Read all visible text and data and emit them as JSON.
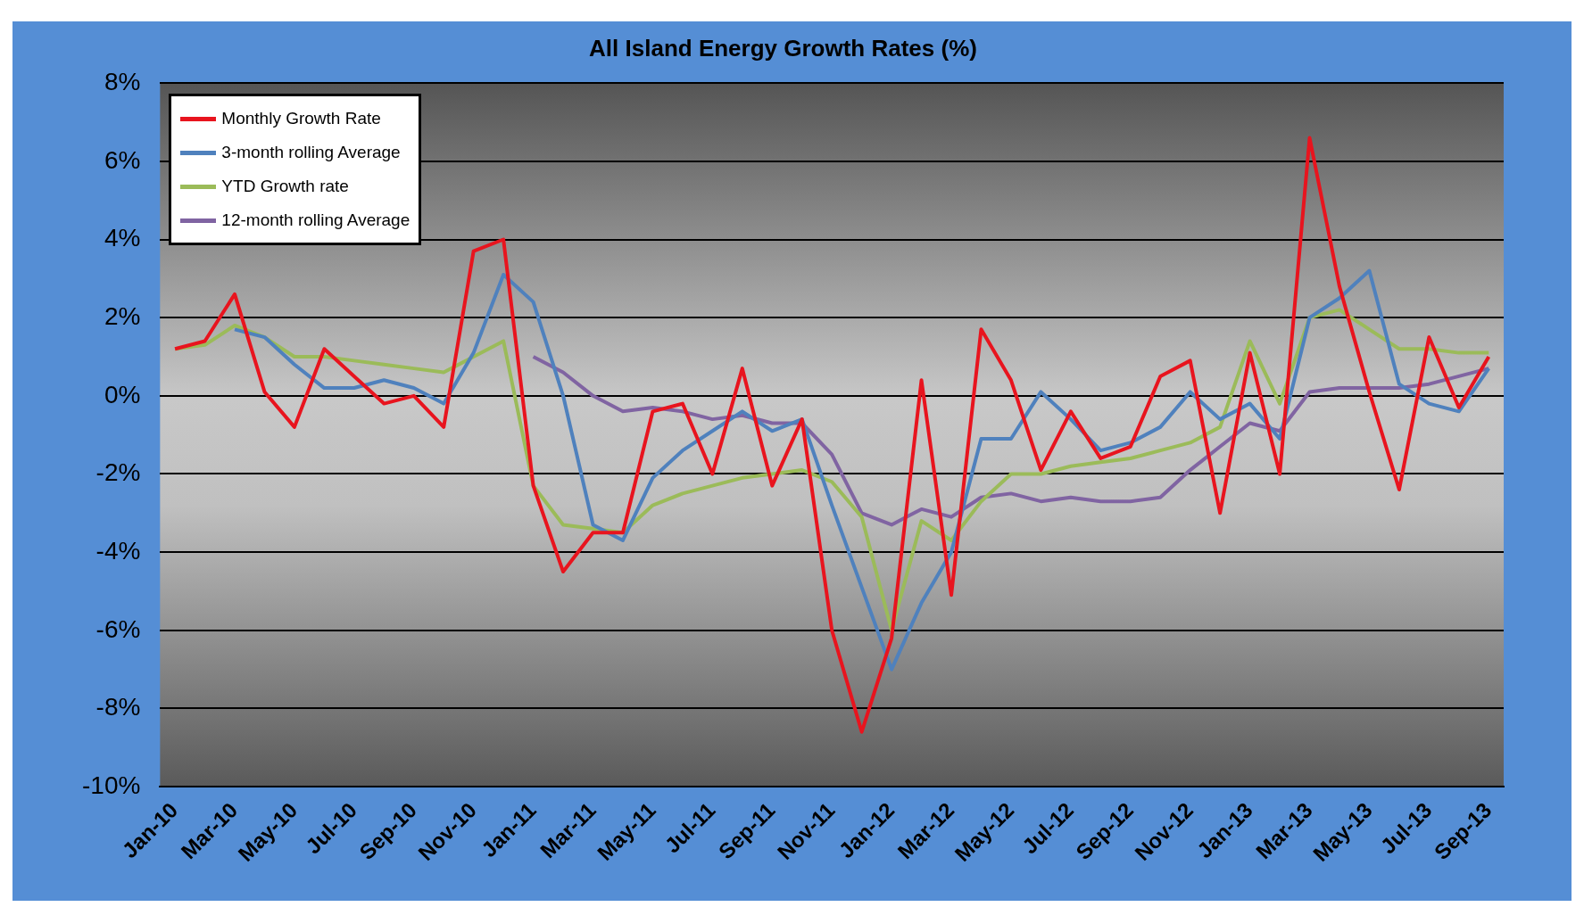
{
  "chart_data": {
    "type": "line",
    "title": "All Island Energy Growth Rates (%)",
    "categories": [
      "Jan-10",
      null,
      "Mar-10",
      null,
      "May-10",
      null,
      "Jul-10",
      null,
      "Sep-10",
      null,
      "Nov-10",
      null,
      "Jan-11",
      null,
      "Mar-11",
      null,
      "May-11",
      null,
      "Jul-11",
      null,
      "Sep-11",
      null,
      "Nov-11",
      null,
      "Jan-12",
      null,
      "Mar-12",
      null,
      "May-12",
      null,
      "Jul-12",
      null,
      "Sep-12",
      null,
      "Nov-12",
      null,
      "Jan-13",
      null,
      "Mar-13",
      null,
      "May-13",
      null,
      "Jul-13",
      null,
      "Sep-13"
    ],
    "series": [
      {
        "name": "Monthly Growth Rate",
        "color": "#e8141e",
        "values": [
          1.2,
          1.4,
          2.6,
          0.1,
          -0.8,
          1.2,
          0.5,
          -0.2,
          0.0,
          -0.8,
          3.7,
          4.0,
          -2.3,
          -4.5,
          -3.5,
          -3.5,
          -0.4,
          -0.2,
          -2.0,
          0.7,
          -2.3,
          -0.6,
          -6.0,
          -8.6,
          -6.2,
          0.4,
          -5.1,
          1.7,
          0.4,
          -1.9,
          -0.4,
          -1.6,
          -1.3,
          0.5,
          0.9,
          -3.0,
          1.1,
          -2.0,
          6.6,
          2.8,
          0.1,
          -2.4,
          1.5,
          -0.3,
          1.0
        ]
      },
      {
        "name": "3-month rolling Average",
        "color": "#4f81bd",
        "values": [
          null,
          null,
          1.7,
          1.5,
          0.8,
          0.2,
          0.2,
          0.4,
          0.2,
          -0.2,
          1.1,
          3.1,
          2.4,
          0.0,
          -3.3,
          -3.7,
          -2.1,
          -1.4,
          -0.9,
          -0.4,
          -0.9,
          -0.6,
          -2.8,
          -4.9,
          -7.0,
          -5.3,
          -4.0,
          -1.1,
          -1.1,
          0.1,
          -0.6,
          -1.4,
          -1.2,
          -0.8,
          0.1,
          -0.6,
          -0.2,
          -1.1,
          2.0,
          2.5,
          3.2,
          0.3,
          -0.2,
          -0.4,
          0.7
        ]
      },
      {
        "name": "YTD Growth rate",
        "color": "#9bbb59",
        "values": [
          1.2,
          1.3,
          1.8,
          1.5,
          1.0,
          1.0,
          0.9,
          0.8,
          0.7,
          0.6,
          1.0,
          1.4,
          -2.3,
          -3.3,
          -3.4,
          -3.5,
          -2.8,
          -2.5,
          -2.3,
          -2.1,
          -2.0,
          -1.9,
          -2.2,
          -3.1,
          -6.0,
          -3.2,
          -3.7,
          -2.7,
          -2.0,
          -2.0,
          -1.8,
          -1.7,
          -1.6,
          -1.4,
          -1.2,
          -0.8,
          1.4,
          -0.2,
          2.0,
          2.2,
          1.7,
          1.2,
          1.2,
          1.1,
          1.1
        ]
      },
      {
        "name": "12-month rolling Average",
        "color": "#8064a2",
        "values": [
          null,
          null,
          null,
          null,
          null,
          null,
          null,
          null,
          null,
          null,
          null,
          null,
          1.0,
          0.6,
          0.0,
          -0.4,
          -0.3,
          -0.4,
          -0.6,
          -0.5,
          -0.7,
          -0.7,
          -1.5,
          -3.0,
          -3.3,
          -2.9,
          -3.1,
          -2.6,
          -2.5,
          -2.7,
          -2.6,
          -2.7,
          -2.7,
          -2.6,
          -1.9,
          -1.3,
          -0.7,
          -0.9,
          0.1,
          0.2,
          0.2,
          0.2,
          0.3,
          0.5,
          0.7
        ]
      }
    ],
    "ylim": [
      -10,
      8
    ],
    "yticks": [
      {
        "value": -10,
        "label": "-10%"
      },
      {
        "value": -8,
        "label": "-8%"
      },
      {
        "value": -6,
        "label": "-6%"
      },
      {
        "value": -4,
        "label": "-4%"
      },
      {
        "value": -2,
        "label": "-2%"
      },
      {
        "value": 0,
        "label": "0%"
      },
      {
        "value": 2,
        "label": "2%"
      },
      {
        "value": 4,
        "label": "4%"
      },
      {
        "value": 6,
        "label": "6%"
      },
      {
        "value": 8,
        "label": "8%"
      }
    ],
    "grid": "y",
    "legend": "top left",
    "marker": "none",
    "line_style": "solid"
  }
}
